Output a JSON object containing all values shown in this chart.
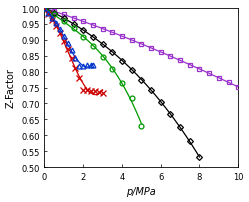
{
  "title": "",
  "xlabel": "p/MPa",
  "ylabel": "Z-Factor",
  "xlim": [
    0,
    10
  ],
  "ylim": [
    0.5,
    1.0
  ],
  "yticks": [
    0.5,
    0.55,
    0.6,
    0.65,
    0.7,
    0.75,
    0.8,
    0.85,
    0.9,
    0.95,
    1.0
  ],
  "xticks": [
    0,
    2,
    4,
    6,
    8,
    10
  ],
  "series": [
    {
      "name": "purple_squares",
      "color": "#9933cc",
      "marker": "s",
      "marker_size": 3.0,
      "marker_facecolor": "none",
      "line_style": "-",
      "p_data": [
        0.0,
        0.5,
        1.0,
        1.5,
        2.0,
        2.5,
        3.0,
        3.5,
        4.0,
        4.5,
        5.0,
        5.5,
        6.0,
        6.5,
        7.0,
        7.5,
        8.0,
        8.5,
        9.0,
        9.5,
        10.0
      ],
      "z_data": [
        1.0,
        0.99,
        0.98,
        0.969,
        0.958,
        0.947,
        0.935,
        0.924,
        0.912,
        0.9,
        0.887,
        0.875,
        0.862,
        0.849,
        0.836,
        0.822,
        0.808,
        0.795,
        0.781,
        0.766,
        0.752
      ]
    },
    {
      "name": "black_diamonds",
      "color": "#000000",
      "marker": "D",
      "marker_size": 3.0,
      "marker_facecolor": "none",
      "line_style": "-",
      "p_data": [
        0.0,
        0.5,
        1.0,
        1.5,
        2.0,
        2.5,
        3.0,
        3.5,
        4.0,
        4.5,
        5.0,
        5.5,
        6.0,
        6.5,
        7.0,
        7.5,
        8.0
      ],
      "z_data": [
        1.0,
        0.985,
        0.969,
        0.951,
        0.931,
        0.91,
        0.887,
        0.862,
        0.835,
        0.806,
        0.775,
        0.742,
        0.706,
        0.668,
        0.626,
        0.581,
        0.53
      ]
    },
    {
      "name": "green_circles",
      "color": "#009900",
      "marker": "o",
      "marker_size": 3.5,
      "marker_facecolor": "none",
      "line_style": "-",
      "p_data": [
        0.0,
        0.5,
        1.0,
        1.5,
        2.0,
        2.5,
        3.0,
        3.5,
        4.0,
        4.5,
        5.0
      ],
      "z_data": [
        1.0,
        0.981,
        0.96,
        0.937,
        0.91,
        0.88,
        0.846,
        0.808,
        0.765,
        0.717,
        0.63
      ]
    },
    {
      "name": "red_crosses",
      "color": "#cc0000",
      "marker": "x",
      "marker_size": 4.0,
      "marker_facecolor": "#cc0000",
      "line_style": "-",
      "p_data": [
        0.0,
        0.2,
        0.4,
        0.6,
        0.8,
        1.0,
        1.2,
        1.4,
        1.6,
        1.8,
        2.0,
        2.2,
        2.4,
        2.6,
        2.8,
        3.0
      ],
      "z_data": [
        1.0,
        0.982,
        0.963,
        0.943,
        0.921,
        0.897,
        0.871,
        0.843,
        0.812,
        0.779,
        0.743,
        0.742,
        0.74,
        0.738,
        0.736,
        0.734
      ]
    },
    {
      "name": "blue_triangles",
      "color": "#0033cc",
      "marker": "^",
      "marker_size": 3.5,
      "marker_facecolor": "none",
      "line_style": "-",
      "p_data": [
        0.0,
        0.2,
        0.4,
        0.6,
        0.8,
        1.0,
        1.2,
        1.4,
        1.6,
        1.8,
        2.0,
        2.2,
        2.4,
        2.5
      ],
      "z_data": [
        1.0,
        0.985,
        0.969,
        0.952,
        0.933,
        0.913,
        0.891,
        0.868,
        0.843,
        0.817,
        0.819,
        0.82,
        0.821,
        0.822
      ]
    }
  ]
}
